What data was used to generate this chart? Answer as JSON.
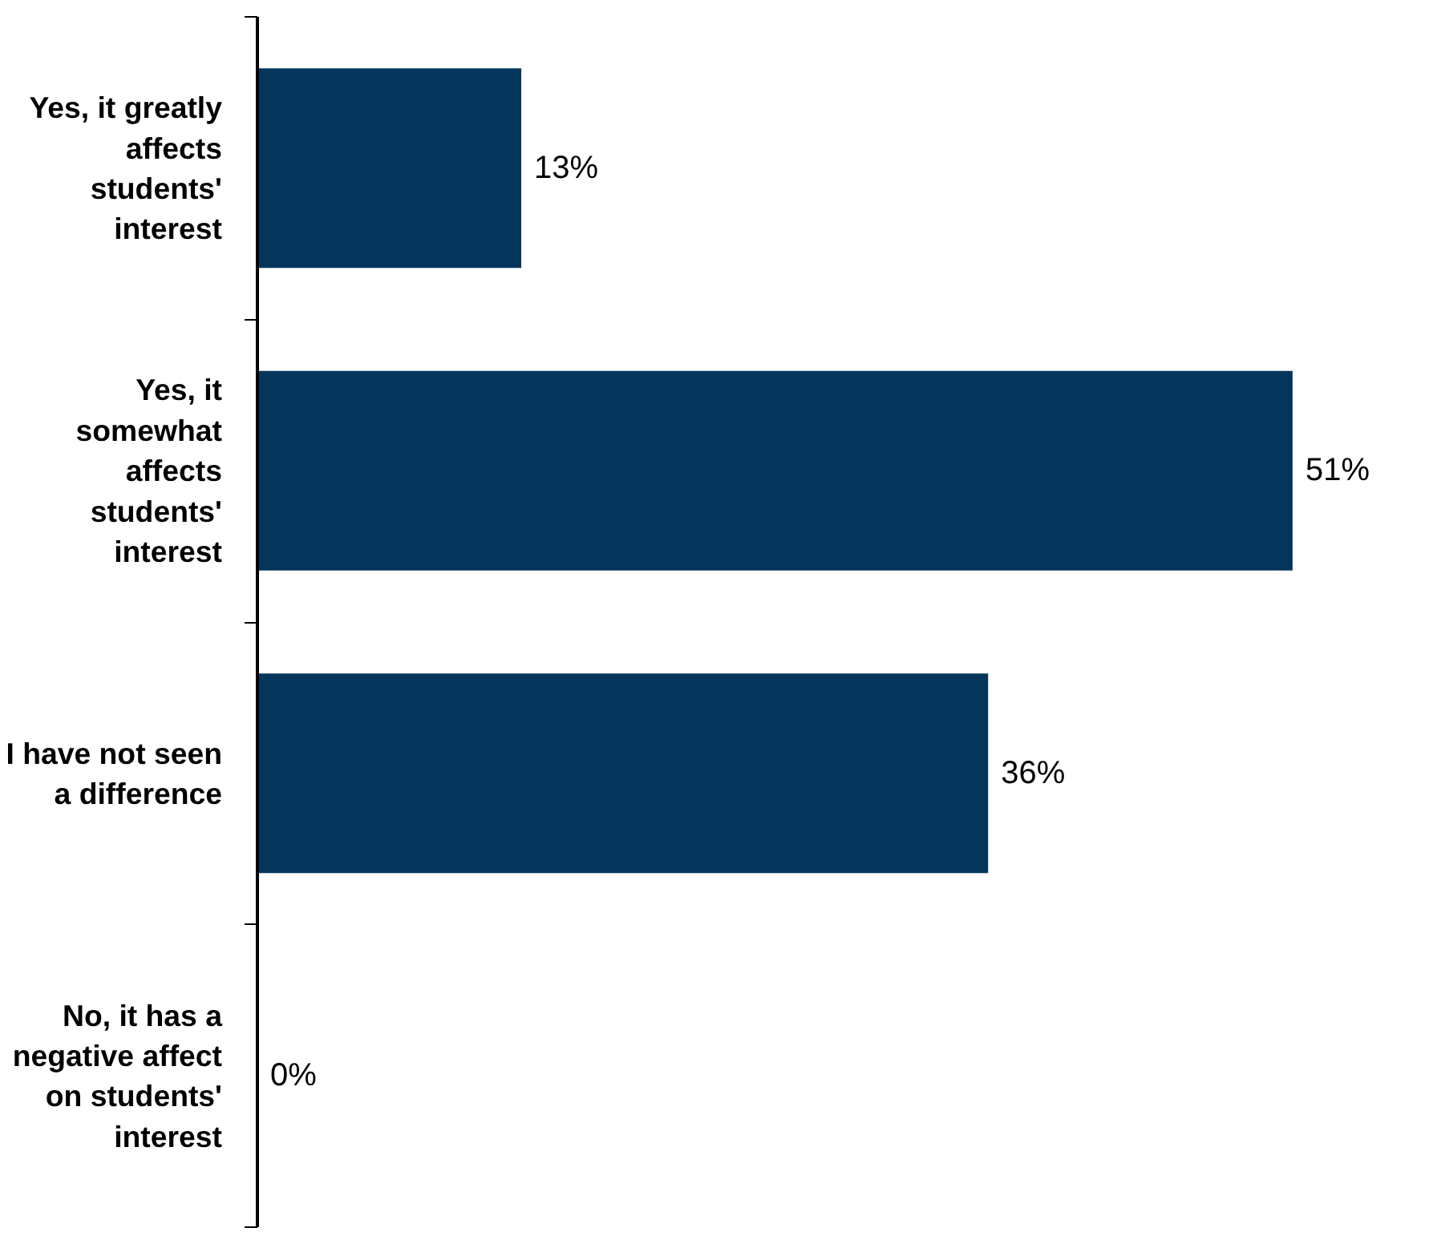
{
  "chart_data": {
    "type": "bar",
    "orientation": "horizontal",
    "grid": false,
    "value_labels": [
      "13%",
      "51%",
      "36%",
      "0%"
    ],
    "categories": [
      "Yes, it greatly affects students' interest",
      "Yes, it somewhat affects students' interest",
      "I have not seen a difference",
      "No, it has a negative affect on students' interest"
    ],
    "values": [
      13,
      51,
      36,
      0
    ],
    "color": "#03365a"
  }
}
